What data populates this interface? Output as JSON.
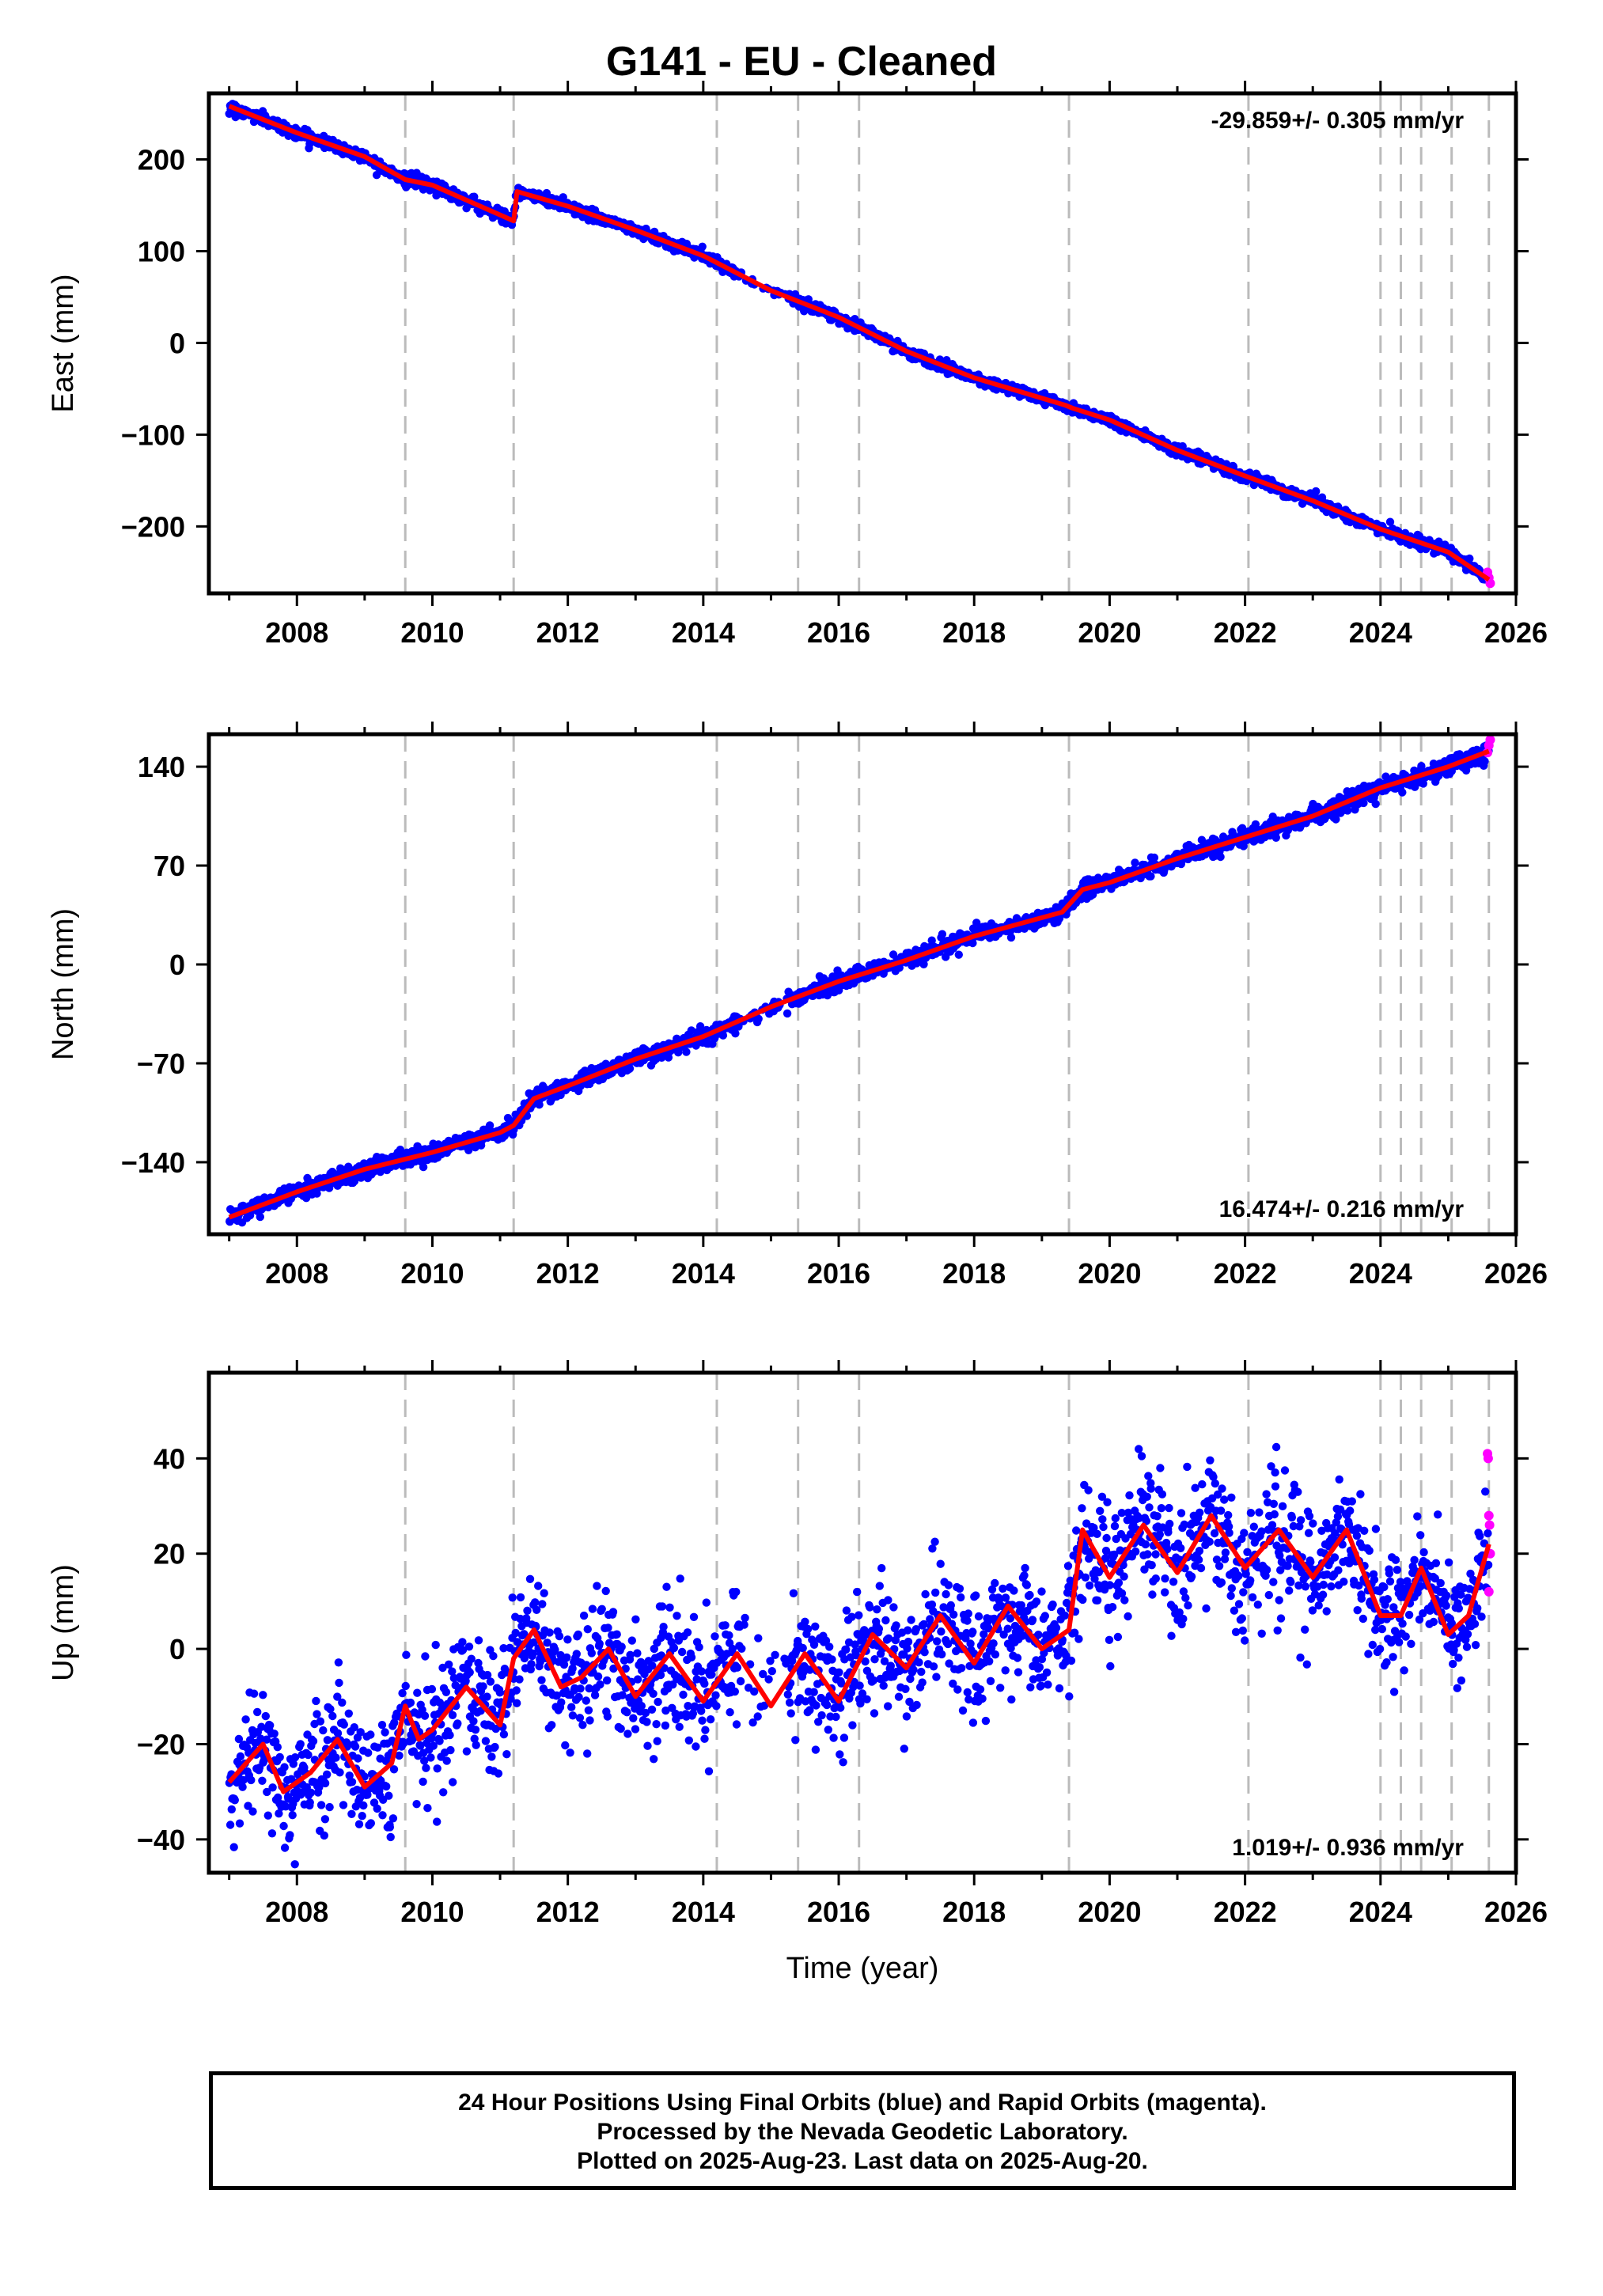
{
  "title": "G141  - EU - Cleaned",
  "footer": {
    "line1": "24 Hour Positions Using Final Orbits (blue) and Rapid Orbits (magenta).",
    "line2": "Processed by the Nevada Geodetic Laboratory.",
    "line3": "Plotted on 2025-Aug-23. Last data on 2025-Aug-20."
  },
  "colors": {
    "final_orbits": "#0000ff",
    "rapid_orbits": "#ff00ff",
    "model_fit": "#ff0000",
    "event_lines": "#bbbbbb"
  },
  "chart_data": [
    {
      "type": "scatter",
      "ylabel": "East (mm)",
      "xlabel": "",
      "rate_text": "-29.859+/- 0.305 mm/yr",
      "rate_position": "top-right",
      "xlim": [
        2006.7,
        2026.0
      ],
      "ylim": [
        -273,
        272
      ],
      "x_ticks": [
        2008,
        2010,
        2012,
        2014,
        2016,
        2018,
        2020,
        2022,
        2024,
        2026
      ],
      "x_tick_labels": [
        "2008",
        "2010",
        "2012",
        "2014",
        "2016",
        "2018",
        "2020",
        "2022",
        "2024",
        "2026"
      ],
      "y_ticks": [
        -200,
        -100,
        0,
        100,
        200
      ],
      "y_tick_labels": [
        "−200",
        "−100",
        "0",
        "100",
        "200"
      ],
      "grid": false,
      "event_lines": [
        2009.6,
        2011.2,
        2014.2,
        2015.4,
        2016.3,
        2019.4,
        2022.05,
        2024.0,
        2024.3,
        2024.6,
        2025.05,
        2025.6
      ],
      "fit": {
        "x": [
          2007.0,
          2008.0,
          2009.0,
          2009.6,
          2010.0,
          2011.2,
          2011.25,
          2012.0,
          2013.0,
          2014.0,
          2015.0,
          2016.0,
          2017.0,
          2018.0,
          2019.35,
          2019.45,
          2020.0,
          2021.0,
          2022.0,
          2023.0,
          2024.0,
          2025.0,
          2025.6
        ],
        "y": [
          258,
          229,
          203,
          178,
          172,
          133,
          165,
          149,
          123,
          95,
          57,
          28,
          -9,
          -38,
          -68,
          -71,
          -84,
          -117,
          -145,
          -172,
          -203,
          -228,
          -258
        ]
      },
      "segments": [
        {
          "start": 2007.0,
          "end": 2009.6,
          "y0": 258,
          "rate": -29.5,
          "noise": 3.0
        },
        {
          "start": 2009.6,
          "end": 2011.2,
          "y0": 178,
          "rate": -26.5,
          "noise": 3.5
        },
        {
          "start": 2011.2,
          "end": 2019.4,
          "y0": 163,
          "rate": -28.5,
          "noise": 3.0
        },
        {
          "start": 2019.4,
          "end": 2025.6,
          "y0": -70,
          "rate": -30.5,
          "noise": 3.0
        }
      ],
      "rapid_points": {
        "x": [
          2025.58,
          2025.6,
          2025.62
        ],
        "y": [
          -250,
          -256,
          -262
        ]
      }
    },
    {
      "type": "scatter",
      "ylabel": "North (mm)",
      "xlabel": "",
      "rate_text": "16.474+/- 0.216 mm/yr",
      "rate_position": "bottom-right",
      "xlim": [
        2006.7,
        2026.0
      ],
      "ylim": [
        -191,
        163
      ],
      "x_ticks": [
        2008,
        2010,
        2012,
        2014,
        2016,
        2018,
        2020,
        2022,
        2024,
        2026
      ],
      "x_tick_labels": [
        "2008",
        "2010",
        "2012",
        "2014",
        "2016",
        "2018",
        "2020",
        "2022",
        "2024",
        "2026"
      ],
      "y_ticks": [
        -140,
        -70,
        0,
        70,
        140
      ],
      "y_tick_labels": [
        "−140",
        "−70",
        "0",
        "70",
        "140"
      ],
      "grid": false,
      "event_lines": [
        2009.6,
        2011.2,
        2014.2,
        2015.4,
        2016.3,
        2019.4,
        2022.05,
        2024.0,
        2024.3,
        2024.6,
        2025.05,
        2025.6
      ],
      "fit": {
        "x": [
          2007.0,
          2008.0,
          2009.0,
          2010.0,
          2011.0,
          2011.2,
          2011.5,
          2012.0,
          2013.0,
          2014.0,
          2015.0,
          2016.0,
          2017.0,
          2018.0,
          2019.3,
          2019.6,
          2020.0,
          2021.0,
          2022.0,
          2023.0,
          2024.0,
          2025.0,
          2025.6
        ],
        "y": [
          -179,
          -161,
          -145,
          -133,
          -119,
          -114,
          -95,
          -86,
          -67,
          -51,
          -30,
          -12,
          3,
          20,
          37,
          53,
          58,
          75,
          90,
          105,
          125,
          140,
          151
        ]
      },
      "segments": [
        {
          "start": 2007.0,
          "end": 2011.2,
          "y0": -179,
          "rate": 15.5,
          "noise": 3.0
        },
        {
          "start": 2011.2,
          "end": 2019.4,
          "y0": -97,
          "rate": 16.2,
          "noise": 3.0
        },
        {
          "start": 2019.4,
          "end": 2025.6,
          "y0": 50,
          "rate": 16.5,
          "noise": 3.0
        }
      ],
      "rapid_points": {
        "x": [
          2025.58,
          2025.6,
          2025.62
        ],
        "y": [
          150,
          155,
          159
        ]
      }
    },
    {
      "type": "scatter",
      "ylabel": "Up (mm)",
      "xlabel": "Time (year)",
      "rate_text": "1.019+/- 0.936 mm/yr",
      "rate_position": "bottom-right",
      "xlim": [
        2006.7,
        2026.0
      ],
      "ylim": [
        -47,
        58
      ],
      "x_ticks": [
        2008,
        2010,
        2012,
        2014,
        2016,
        2018,
        2020,
        2022,
        2024,
        2026
      ],
      "x_tick_labels": [
        "2008",
        "2010",
        "2012",
        "2014",
        "2016",
        "2018",
        "2020",
        "2022",
        "2024",
        "2026"
      ],
      "y_ticks": [
        -40,
        -20,
        0,
        20,
        40
      ],
      "y_tick_labels": [
        "−40",
        "−20",
        "0",
        "20",
        "40"
      ],
      "grid": false,
      "event_lines": [
        2009.6,
        2011.2,
        2014.2,
        2015.4,
        2016.3,
        2019.4,
        2022.05,
        2024.0,
        2024.3,
        2024.6,
        2025.05,
        2025.6
      ],
      "fit": {
        "x": [
          2007.0,
          2007.5,
          2007.8,
          2008.2,
          2008.6,
          2009.0,
          2009.4,
          2009.6,
          2009.8,
          2010.0,
          2010.5,
          2011.0,
          2011.2,
          2011.5,
          2011.9,
          2012.2,
          2012.6,
          2013.0,
          2013.5,
          2014.0,
          2014.5,
          2015.0,
          2015.5,
          2016.0,
          2016.5,
          2017.0,
          2017.5,
          2018.0,
          2018.5,
          2019.0,
          2019.4,
          2019.6,
          2020.0,
          2020.5,
          2021.0,
          2021.5,
          2022.0,
          2022.5,
          2023.0,
          2023.5,
          2024.0,
          2024.3,
          2024.6,
          2025.0,
          2025.3,
          2025.6
        ],
        "y": [
          -28,
          -20,
          -30,
          -26,
          -19,
          -29,
          -24,
          -12,
          -19,
          -17,
          -8,
          -16,
          -2,
          4,
          -8,
          -6,
          0,
          -10,
          -1,
          -11,
          -1,
          -12,
          -1,
          -11,
          3,
          -4,
          7,
          -3,
          9,
          0,
          4,
          25,
          15,
          26,
          16,
          28,
          17,
          25,
          15,
          25,
          7,
          7,
          17,
          3,
          7,
          22
        ]
      },
      "segments": [
        {
          "start": 2007.0,
          "end": 2009.6,
          "y0": -26,
          "rate": 1.5,
          "noise": 5.5
        },
        {
          "start": 2009.6,
          "end": 2011.2,
          "y0": -18,
          "rate": 5.0,
          "noise": 6.5
        },
        {
          "start": 2011.2,
          "end": 2019.4,
          "y0": -4,
          "rate": 0.8,
          "noise": 6.5
        },
        {
          "start": 2019.4,
          "end": 2023.0,
          "y0": 19,
          "rate": 1.5,
          "noise": 7.5
        },
        {
          "start": 2023.0,
          "end": 2025.6,
          "y0": 6,
          "rate": 2.0,
          "noise": 6.0
        }
      ],
      "rapid_points": {
        "x": [
          2025.58,
          2025.59,
          2025.6,
          2025.61,
          2025.62,
          2025.6
        ],
        "y": [
          41,
          40,
          28,
          26,
          20,
          12
        ]
      }
    }
  ]
}
